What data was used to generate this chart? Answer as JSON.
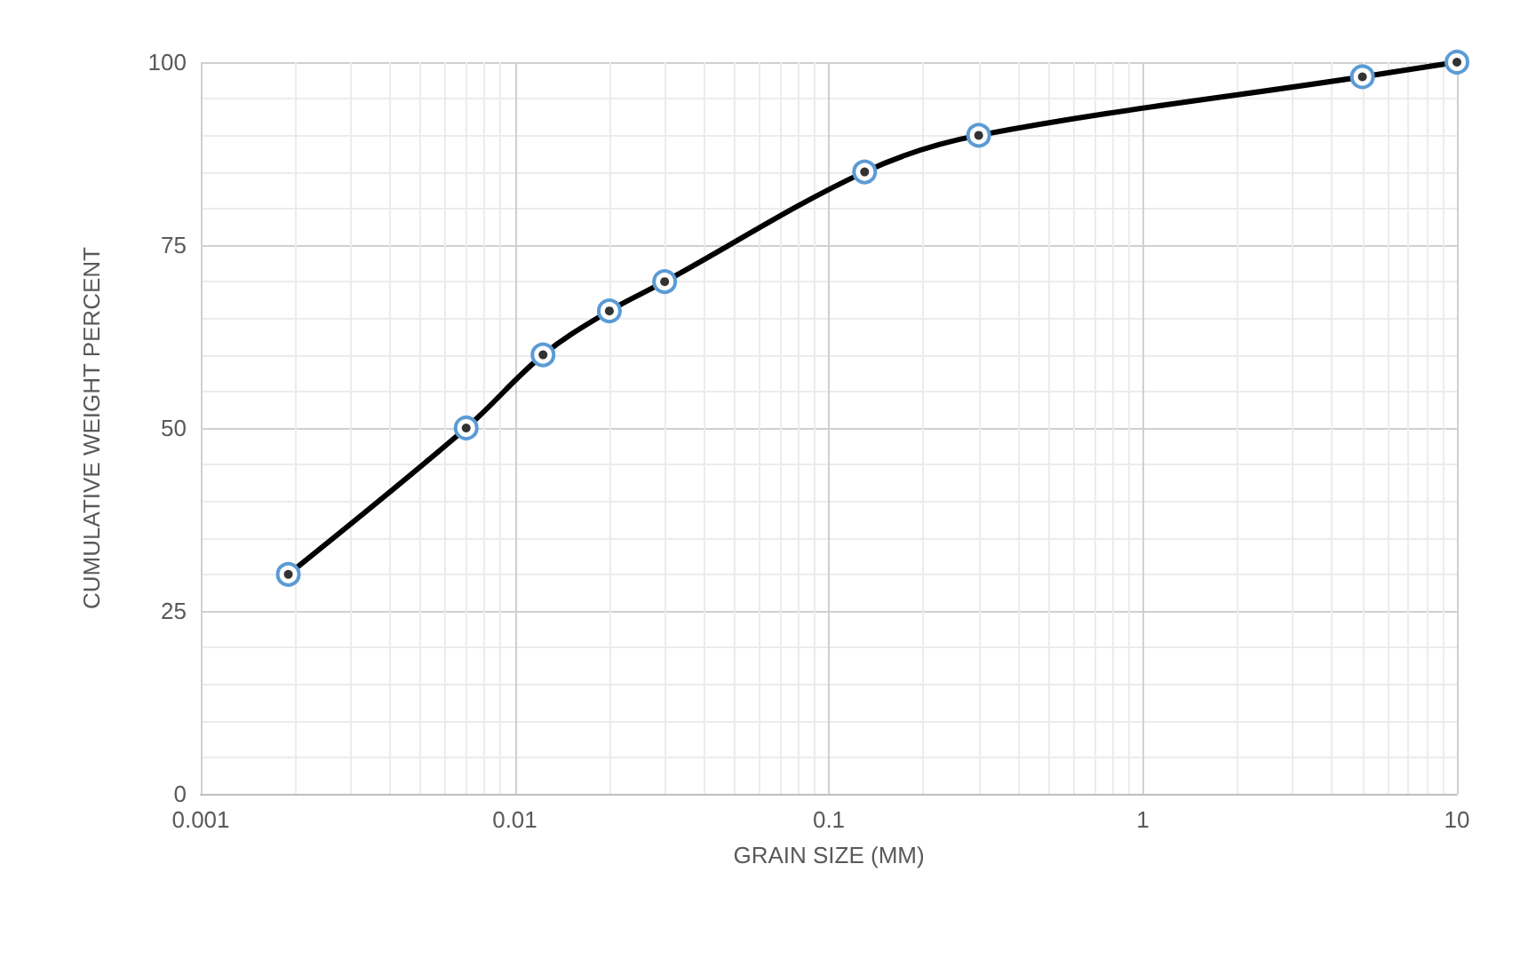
{
  "chart_data": {
    "type": "line",
    "xlabel": "GRAIN SIZE (MM)",
    "ylabel": "CUMULATIVE WEIGHT PERCENT",
    "x": [
      0.0019,
      0.007,
      0.0123,
      0.02,
      0.03,
      0.13,
      0.3,
      5,
      10
    ],
    "series": [
      {
        "color": "#000000",
        "values": [
          30,
          50,
          60,
          66,
          70,
          85,
          90,
          98,
          100
        ]
      }
    ],
    "log": "x",
    "xlim": [
      0.001,
      10
    ],
    "xticks": [
      0.001,
      0.01,
      0.1,
      1,
      10
    ],
    "ylim": [
      0,
      100
    ],
    "yticks": [
      0,
      25,
      50,
      75,
      100
    ],
    "grid": true,
    "marker": "circle",
    "line_style": "solid"
  }
}
